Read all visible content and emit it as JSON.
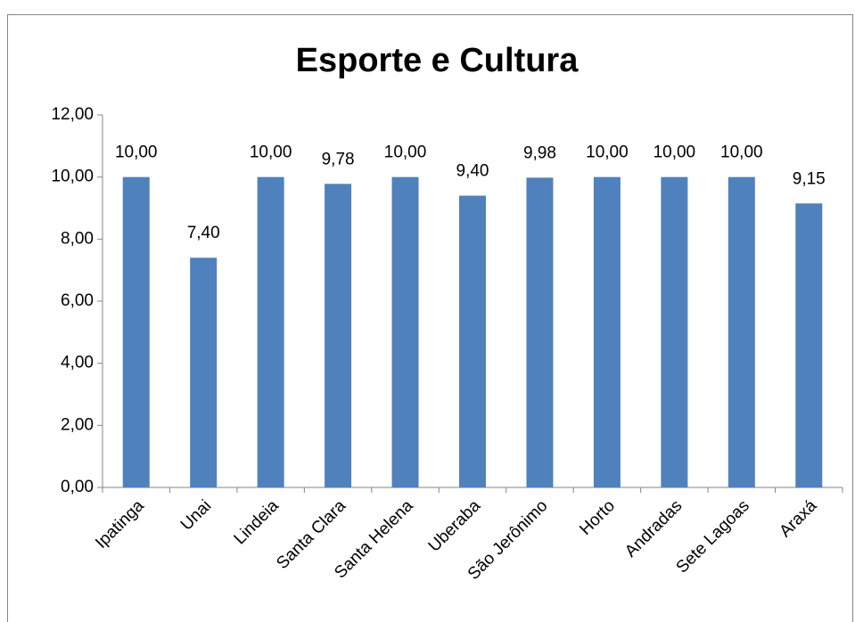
{
  "chart_data": {
    "type": "bar",
    "title": "Esporte e Cultura",
    "categories": [
      "Ipatinga",
      "Unai",
      "Lindeia",
      "Santa Clara",
      "Santa Helena",
      "Uberaba",
      "São Jerônimo",
      "Horto",
      "Andradas",
      "Sete Lagoas",
      "Araxá"
    ],
    "values": [
      10,
      7.4,
      10,
      9.78,
      10,
      9.4,
      9.98,
      10,
      10,
      10,
      9.15
    ],
    "value_labels": [
      "10,00",
      "7,40",
      "10,00",
      "9,78",
      "10,00",
      "9,40",
      "9,98",
      "10,00",
      "10,00",
      "10,00",
      "9,15"
    ],
    "color": "#4f81bd",
    "ylim": [
      0,
      12
    ],
    "yticks": [
      {
        "value": 0,
        "label": "0,00"
      },
      {
        "value": 2,
        "label": "2,00"
      },
      {
        "value": 4,
        "label": "4,00"
      },
      {
        "value": 6,
        "label": "6,00"
      },
      {
        "value": 8,
        "label": "8,00"
      },
      {
        "value": 10,
        "label": "10,00"
      },
      {
        "value": 12,
        "label": "12,00"
      }
    ],
    "grid": false
  }
}
